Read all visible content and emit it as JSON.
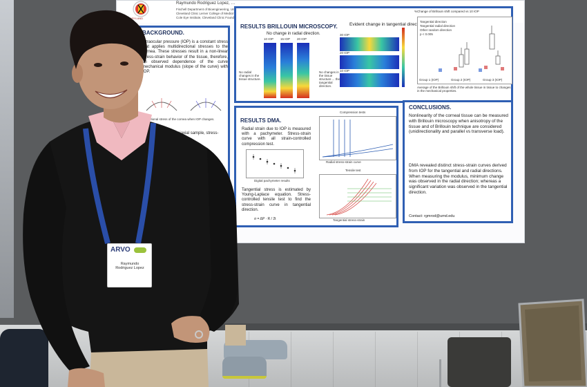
{
  "poster": {
    "author_line": "Raymundo Rodriguez Lopez, …",
    "affiliations": [
      "Fischell Department of Bioengineering, University of Maryland, College Park, Maryland, United States",
      "Cleveland Clinic Lerner College of Medicine, Case Western Reserve University, Cleveland, Ohio, United States",
      "Cole Eye Institute, Cleveland Clinic Foundation, Cleveland, Ohio, United States"
    ],
    "logo_text": "MARYLAND",
    "background": {
      "title": "BACKGROUND.",
      "text": "Intraocular pressure (IOP) is a constant stress that applies multidirectional stresses to the cornea. These stresses result in a non-linear stress-strain behavior of the tissue, therefore, an observed dependence of the curve mechanical modulus (slope of the curve) with IOP.",
      "caption": "Directional stress of the cornea when IOP changes.",
      "lower_text": "In a recent all the uniaxial sample, stress-strain a ... with IOP"
    },
    "brillouin": {
      "title": "RESULTS BRILLOUIN MICROSCOPY.",
      "radial_label": "No change in radial direction.",
      "tangential_label": "Evident change in tangential direction.",
      "iop_labels": [
        "10 IOP",
        "15 IOP",
        "20 IOP"
      ],
      "band_labels": [
        "30 IOP",
        "20 IOP",
        "10 IOP"
      ],
      "left_note": "No radial changes in the tissue structure.",
      "right_note": "No changes in the tissue structure ... the tangential direction.",
      "chart_title": "%Change of Brillouin shift compared vs 10 IOP",
      "legend": [
        "Tangential direction",
        "Tangential radial direction",
        "Other random direction",
        "p < 0.005"
      ],
      "groups": [
        "Group 1 (IOP)",
        "Group 2 (IOP)",
        "Group 3 (IOP)"
      ],
      "caption": "Average of the Brillouin shift of the whole tissue in tissue to changes in the mechanical properties."
    },
    "dma": {
      "title": "RESULTS DMA.",
      "text1": "Radial strain due to IOP is measured with a pachymeter. Stress-strain curve with all strain-controlled compression test.",
      "xlabel1": "Digital pachymeter results",
      "text2": "Tangential stress is estimated by Young-Laplace equation. Stress-controlled tensile test to find the stress-strain curve in tangential direction.",
      "formula": "σ = ΔP · R / 2t",
      "compression_title": "Compression tests",
      "compression_xlabel": "Radial stress-strain curve",
      "tensile_title": "Tensile test",
      "tensile_xlabel": "Tangential stress-strain"
    },
    "conclusions": {
      "title": "CONCLUSIONS.",
      "bullet1": "Nonlinearity of the corneal tissue can be measured with Brillouin microscopy when anisotropy of the tissue and of Brillouin technique are considered (unidirectionality and parallel vs transverse load).",
      "bullet2": "DMA revealed distinct stress-strain curves derived from IOP for the tangential and radial directions. When measuring the modulus, minimum change was observed in the radial direction; whereas a significant variation was observed in the tangential direction.",
      "contact": "Contact: rgmrod@umd.edu"
    }
  },
  "badge": {
    "logo": "ARVO",
    "name": "Raymundo Rodriguez Lopez"
  },
  "colors": {
    "panel_border": "#2f5fb3",
    "sweater": "#151515",
    "lanyard": "#2a4ea8",
    "pants": "#c9b79a"
  }
}
